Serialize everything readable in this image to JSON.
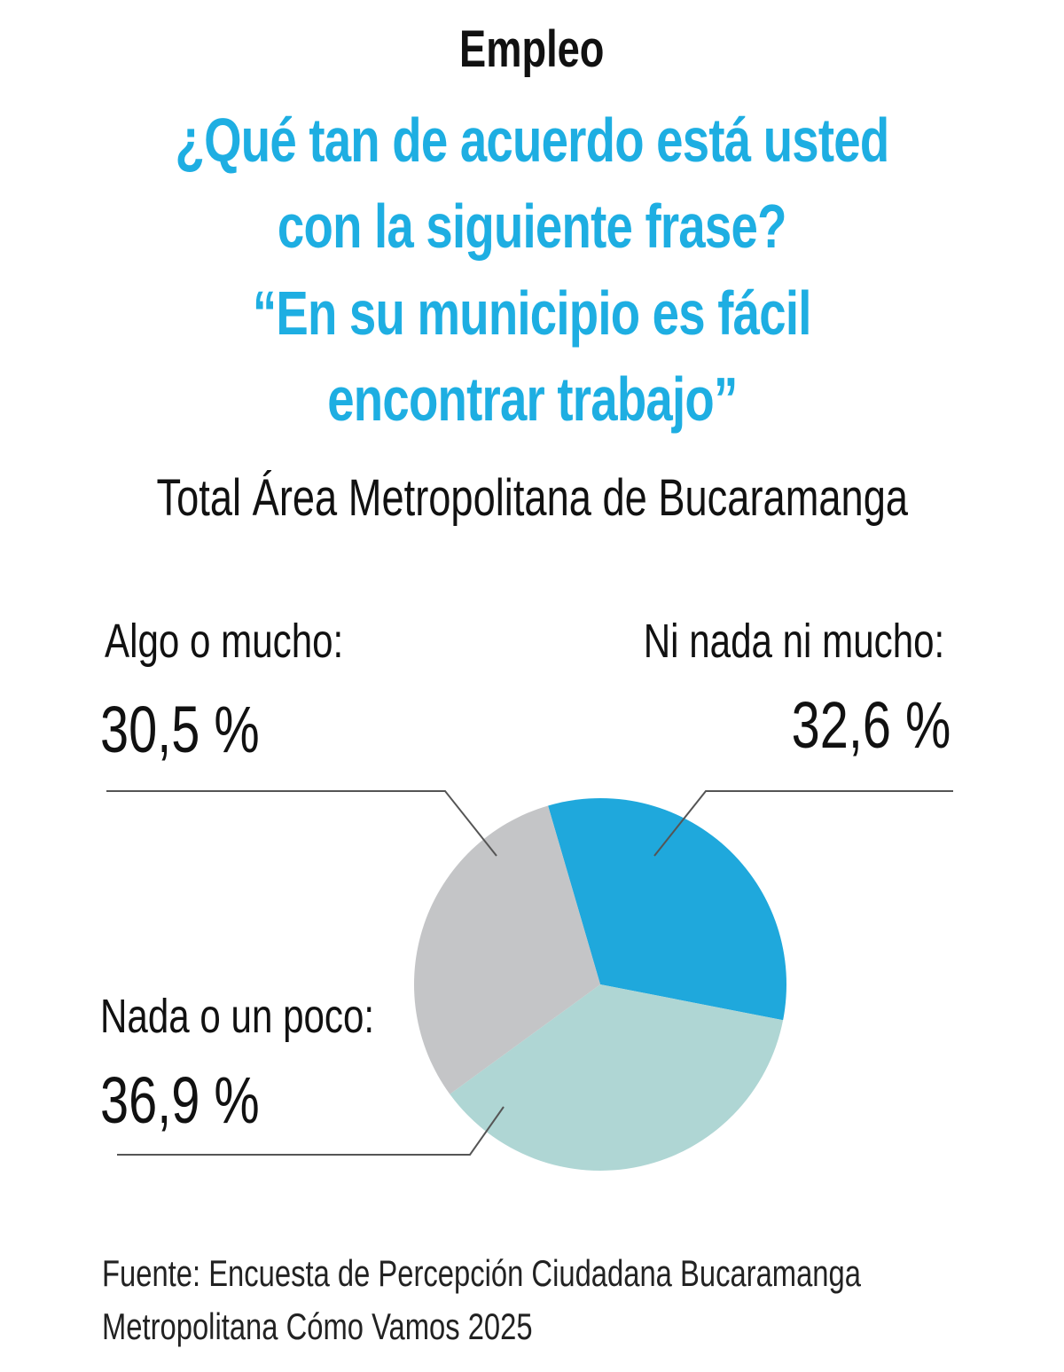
{
  "kicker": "Empleo",
  "title_lines": [
    "¿Qué tan de acuerdo está usted",
    "con la siguiente frase?",
    "“En su municipio es fácil",
    "encontrar trabajo”"
  ],
  "subtitle": "Total Área Metropolitana de Bucaramanga",
  "source_lines": [
    "Fuente: Encuesta de Percepción Ciudadana Bucaramanga",
    "Metropolitana Cómo Vamos 2025"
  ],
  "colors": {
    "title": "#1eaee2",
    "ni_nada": "#1fa8dc",
    "nada": "#afd6d4",
    "algo": "#c4c5c7"
  },
  "chart_data": {
    "type": "pie",
    "title": "¿Qué tan de acuerdo está usted con la siguiente frase? “En su municipio es fácil encontrar trabajo”",
    "slices": [
      {
        "label": "Ni nada ni mucho:",
        "value": 32.6,
        "value_label": "32,6 %",
        "color": "#1fa8dc"
      },
      {
        "label": "Nada o un poco:",
        "value": 36.9,
        "value_label": "36,9 %",
        "color": "#afd6d4"
      },
      {
        "label": "Algo o mucho:",
        "value": 30.5,
        "value_label": "30,5 %",
        "color": "#c4c5c7"
      }
    ]
  }
}
